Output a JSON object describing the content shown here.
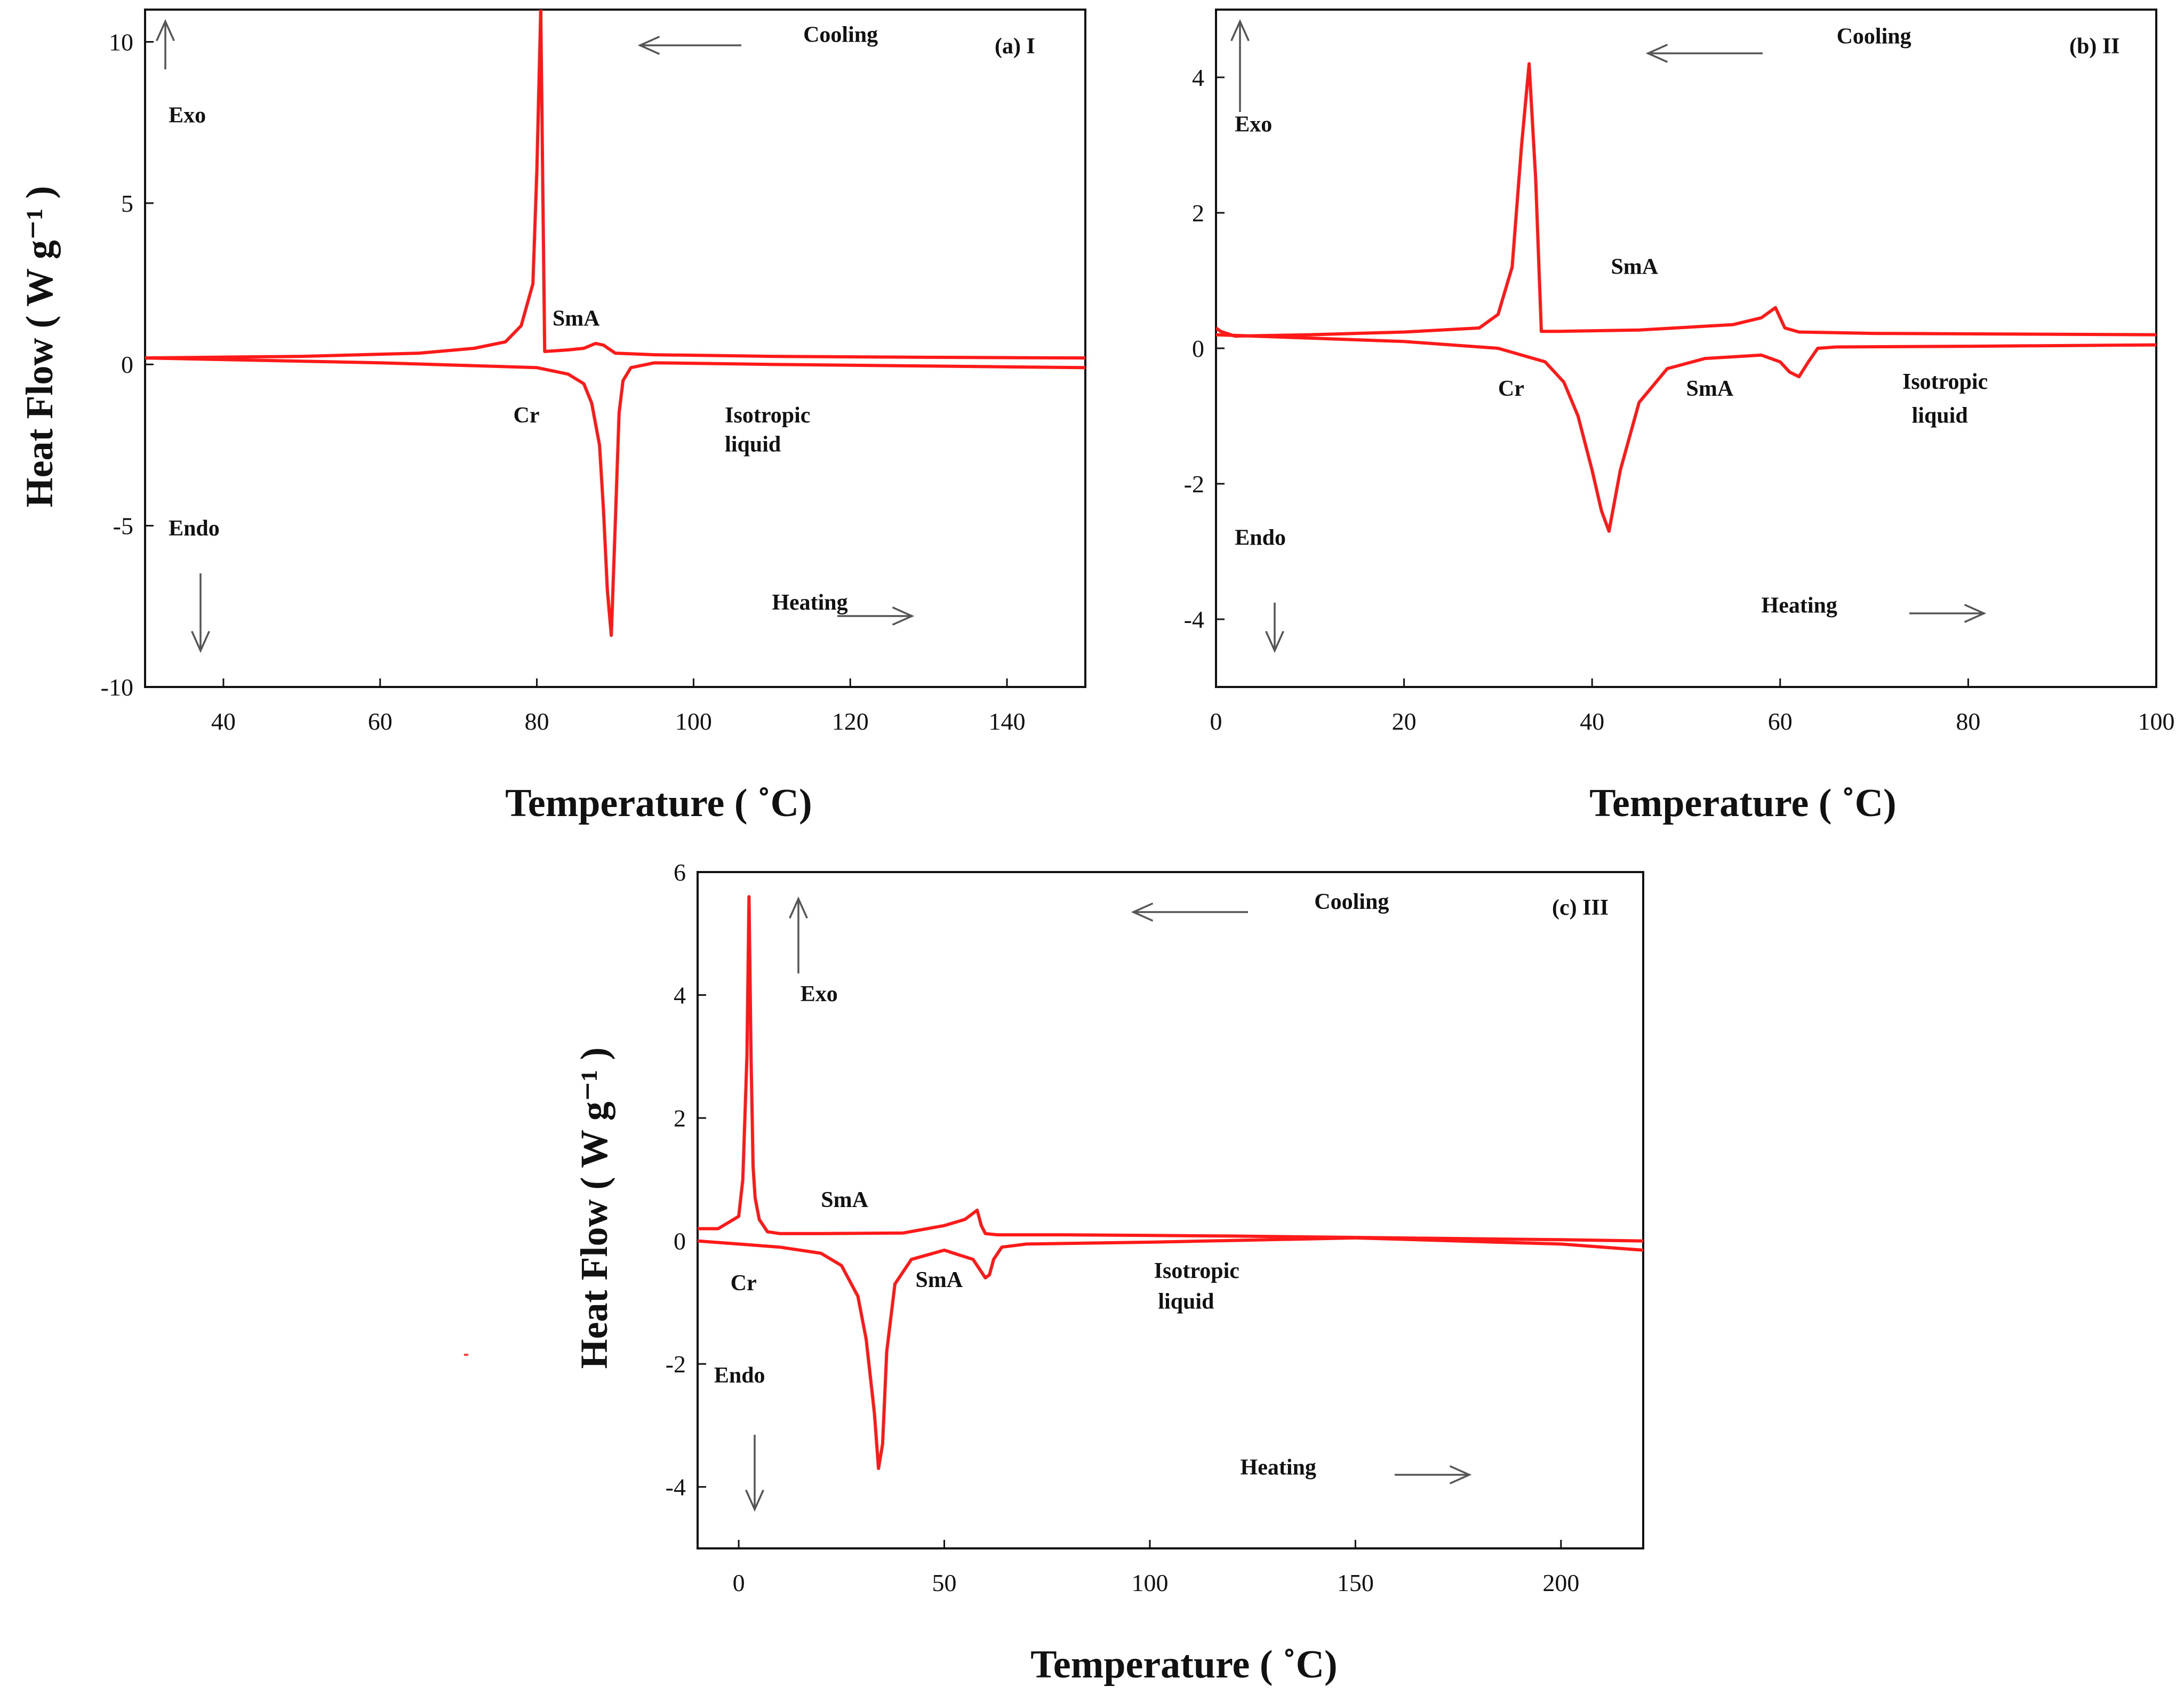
{
  "chart_data": [
    {
      "type": "line",
      "panel_label": "(a) I",
      "xlabel": "Temperature ( ˚C)",
      "ylabel": "Heat Flow ( W g⁻¹ )",
      "xlim": [
        30,
        150
      ],
      "ylim": [
        -10,
        11
      ],
      "xticks": [
        40,
        60,
        80,
        100,
        120,
        140
      ],
      "yticks": [
        -10,
        -5,
        0,
        5,
        10
      ],
      "series": [
        {
          "name": "Cooling",
          "x": [
            30,
            50,
            65,
            72,
            76,
            78,
            79.5,
            80,
            80.5,
            81,
            84,
            86,
            87.5,
            88.5,
            90,
            95,
            110,
            130,
            150
          ],
          "y": [
            0.2,
            0.25,
            0.35,
            0.5,
            0.7,
            1.2,
            2.5,
            6,
            11,
            0.4,
            0.45,
            0.5,
            0.65,
            0.6,
            0.35,
            0.3,
            0.25,
            0.22,
            0.2
          ]
        },
        {
          "name": "Heating",
          "x": [
            30,
            60,
            80,
            84,
            86,
            87,
            88,
            88.5,
            89,
            89.5,
            90,
            90.5,
            91,
            92,
            95,
            110,
            130,
            150
          ],
          "y": [
            0.2,
            0.05,
            -0.1,
            -0.3,
            -0.6,
            -1.2,
            -2.5,
            -4.5,
            -7,
            -8.4,
            -5,
            -1.5,
            -0.5,
            -0.1,
            0.05,
            0.0,
            -0.05,
            -0.1
          ]
        }
      ],
      "annotations": [
        {
          "text": "Cooling",
          "x": 114,
          "y": 10
        },
        {
          "text": "Heating",
          "x": 110,
          "y": -7.6
        },
        {
          "text": "Exo",
          "x": 33,
          "y": 7.5
        },
        {
          "text": "Endo",
          "x": 33,
          "y": -5.3
        },
        {
          "text": "SmA",
          "x": 82,
          "y": 1.2
        },
        {
          "text": "Cr",
          "x": 77,
          "y": -1.8
        },
        {
          "text": "Isotropic",
          "x": 104,
          "y": -1.8
        },
        {
          "text": "liquid",
          "x": 104,
          "y": -2.7
        }
      ]
    },
    {
      "type": "line",
      "panel_label": "(b) II",
      "xlabel": "Temperature ( ˚C)",
      "ylabel": "",
      "xlim": [
        0,
        100
      ],
      "ylim": [
        -5,
        5
      ],
      "xticks": [
        0,
        20,
        40,
        60,
        80,
        100
      ],
      "yticks": [
        -4,
        -2,
        0,
        2,
        4
      ],
      "series": [
        {
          "name": "Cooling",
          "x": [
            0,
            0.5,
            2,
            10,
            20,
            28,
            30,
            31.5,
            32.5,
            33.3,
            34,
            34.6,
            36,
            45,
            55,
            58,
            59.5,
            60.5,
            62,
            70,
            100
          ],
          "y": [
            0.3,
            0.25,
            0.18,
            0.2,
            0.24,
            0.3,
            0.5,
            1.2,
            3.0,
            4.2,
            2.5,
            0.25,
            0.25,
            0.27,
            0.35,
            0.45,
            0.6,
            0.3,
            0.24,
            0.22,
            0.2
          ]
        },
        {
          "name": "Heating",
          "x": [
            0,
            10,
            20,
            30,
            35,
            37,
            38.5,
            40,
            41,
            41.8,
            43,
            45,
            48,
            52,
            58,
            60,
            61,
            62,
            63,
            64,
            66,
            80,
            100
          ],
          "y": [
            0.2,
            0.15,
            0.1,
            0.0,
            -0.2,
            -0.5,
            -1.0,
            -1.8,
            -2.4,
            -2.7,
            -1.8,
            -0.8,
            -0.3,
            -0.15,
            -0.1,
            -0.2,
            -0.35,
            -0.42,
            -0.2,
            0.0,
            0.02,
            0.03,
            0.05
          ]
        }
      ],
      "annotations": [
        {
          "text": "Cooling",
          "x": 66,
          "y": 4.5
        },
        {
          "text": "Heating",
          "x": 58,
          "y": -3.9
        },
        {
          "text": "Exo",
          "x": 2,
          "y": 3.2
        },
        {
          "text": "Endo",
          "x": 2,
          "y": -2.9
        },
        {
          "text": "SmA",
          "x": 42,
          "y": 1.1
        },
        {
          "text": "Cr",
          "x": 30,
          "y": -0.7
        },
        {
          "text": "SmA",
          "x": 50,
          "y": -0.7
        },
        {
          "text": "Isotropic",
          "x": 73,
          "y": -0.6
        },
        {
          "text": "liquid",
          "x": 74,
          "y": -1.1
        }
      ]
    },
    {
      "type": "line",
      "panel_label": "(c) III",
      "xlabel": "Temperature ( ˚C)",
      "ylabel": "Heat Flow ( W g⁻¹ )",
      "xlim": [
        -10,
        220
      ],
      "ylim": [
        -5,
        6
      ],
      "xticks": [
        0,
        50,
        100,
        150,
        200
      ],
      "yticks": [
        -4,
        -2,
        0,
        2,
        4,
        6
      ],
      "series": [
        {
          "name": "Cooling",
          "x": [
            -10,
            -5,
            0,
            1,
            2,
            2.5,
            3,
            3.5,
            4,
            5,
            7,
            10,
            20,
            40,
            50,
            55,
            58,
            59,
            60,
            63,
            80,
            120,
            160,
            200,
            220
          ],
          "y": [
            0.2,
            0.2,
            0.4,
            1.0,
            3.0,
            5.6,
            3.0,
            1.2,
            0.7,
            0.35,
            0.15,
            0.12,
            0.12,
            0.13,
            0.25,
            0.35,
            0.5,
            0.25,
            0.12,
            0.1,
            0.1,
            0.08,
            0.05,
            0.02,
            0.0
          ]
        },
        {
          "name": "Heating",
          "x": [
            -10,
            0,
            10,
            20,
            25,
            29,
            31,
            33,
            34,
            35,
            36,
            38,
            42,
            50,
            57,
            59,
            60,
            61,
            62,
            64,
            70,
            100,
            150,
            200,
            220
          ],
          "y": [
            0.0,
            -0.05,
            -0.1,
            -0.2,
            -0.4,
            -0.9,
            -1.6,
            -2.8,
            -3.7,
            -3.3,
            -1.8,
            -0.7,
            -0.3,
            -0.15,
            -0.3,
            -0.5,
            -0.6,
            -0.55,
            -0.3,
            -0.1,
            -0.05,
            -0.02,
            0.05,
            -0.05,
            -0.15
          ]
        }
      ],
      "annotations": [
        {
          "text": "Cooling",
          "x": 140,
          "y": 5.4
        },
        {
          "text": "Heating",
          "x": 122,
          "y": -3.8
        },
        {
          "text": "Exo",
          "x": 15,
          "y": 3.9
        },
        {
          "text": "Endo",
          "x": -6,
          "y": -2.3
        },
        {
          "text": "SmA",
          "x": 20,
          "y": 0.55
        },
        {
          "text": "Cr",
          "x": -2,
          "y": -0.8
        },
        {
          "text": "SmA",
          "x": 43,
          "y": -0.75
        },
        {
          "text": "Isotropic",
          "x": 101,
          "y": -0.6
        },
        {
          "text": "liquid",
          "x": 102,
          "y": -1.1
        }
      ]
    }
  ]
}
